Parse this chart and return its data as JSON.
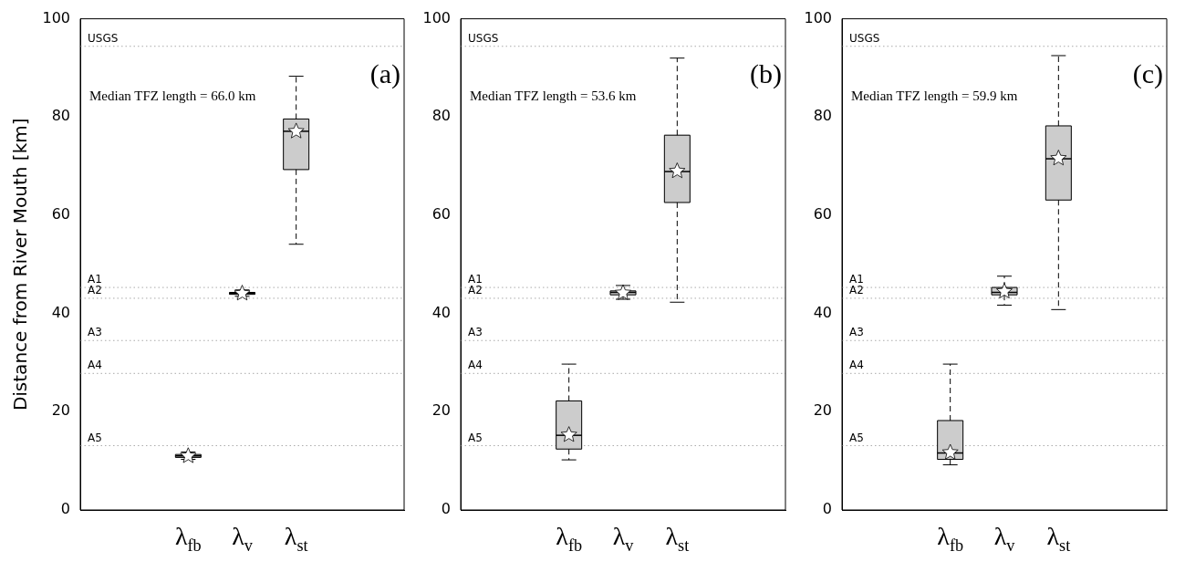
{
  "chart_data": [
    {
      "type": "box",
      "ylabel": "Distance from River Mouth [km]",
      "categories": [
        "λ$_{fb}$",
        "λ$_{v}$",
        "λ$_{st}$"
      ],
      "color": "#cccccc",
      "marker": "star",
      "ylim": [
        0,
        100
      ],
      "yticks": [
        0,
        20,
        40,
        60,
        80,
        100
      ],
      "grid": false,
      "boxes": [
        {
          "low": 10.3,
          "q1": 10.7,
          "median": 11.0,
          "q3": 11.3,
          "high": 11.8,
          "mean": 11.0
        },
        {
          "low": 43.5,
          "q1": 43.9,
          "median": 44.1,
          "q3": 44.3,
          "high": 44.8,
          "mean": 44.1
        },
        {
          "low": 54.1,
          "q1": 69.3,
          "median": 77.1,
          "q3": 79.6,
          "high": 88.3,
          "mean": 77.1
        }
      ],
      "ref_lines": [
        {
          "axis": "y",
          "value": 94.4,
          "label": "USGS",
          "color": "#aaaaaa",
          "line_style": "dotted"
        },
        {
          "axis": "y",
          "value": 45.3,
          "label": "A1",
          "color": "#aaaaaa",
          "line_style": "dotted"
        },
        {
          "axis": "y",
          "value": 43.1,
          "label": "A2",
          "color": "#aaaaaa",
          "line_style": "dotted"
        },
        {
          "axis": "y",
          "value": 34.5,
          "label": "A3",
          "color": "#aaaaaa",
          "line_style": "dotted"
        },
        {
          "axis": "y",
          "value": 27.8,
          "label": "A4",
          "color": "#aaaaaa",
          "line_style": "dotted"
        },
        {
          "axis": "y",
          "value": 13.1,
          "label": "A5",
          "color": "#aaaaaa",
          "line_style": "dotted"
        }
      ],
      "annotations": [
        "Median TFZ length = 66.0 km",
        "(a)"
      ]
    },
    {
      "type": "box",
      "categories": [
        "λ$_{fb}$",
        "λ$_{v}$",
        "λ$_{st}$"
      ],
      "color": "#cccccc",
      "marker": "star",
      "ylim": [
        0,
        100
      ],
      "yticks": [
        0,
        20,
        40,
        60,
        80,
        100
      ],
      "grid": false,
      "boxes": [
        {
          "low": 10.2,
          "q1": 12.4,
          "median": 15.2,
          "q3": 22.2,
          "high": 29.7,
          "mean": 15.3
        },
        {
          "low": 42.9,
          "q1": 43.8,
          "median": 44.3,
          "q3": 44.6,
          "high": 45.7,
          "mean": 44.2
        },
        {
          "low": 42.3,
          "q1": 62.6,
          "median": 68.9,
          "q3": 76.3,
          "high": 92.0,
          "mean": 69.0
        }
      ],
      "ref_lines": [
        {
          "axis": "y",
          "value": 94.4,
          "label": "USGS",
          "color": "#aaaaaa",
          "line_style": "dotted"
        },
        {
          "axis": "y",
          "value": 45.3,
          "label": "A1",
          "color": "#aaaaaa",
          "line_style": "dotted"
        },
        {
          "axis": "y",
          "value": 43.1,
          "label": "A2",
          "color": "#aaaaaa",
          "line_style": "dotted"
        },
        {
          "axis": "y",
          "value": 34.5,
          "label": "A3",
          "color": "#aaaaaa",
          "line_style": "dotted"
        },
        {
          "axis": "y",
          "value": 27.8,
          "label": "A4",
          "color": "#aaaaaa",
          "line_style": "dotted"
        },
        {
          "axis": "y",
          "value": 13.1,
          "label": "A5",
          "color": "#aaaaaa",
          "line_style": "dotted"
        }
      ],
      "annotations": [
        "Median TFZ length = 53.6 km",
        "(b)"
      ]
    },
    {
      "type": "box",
      "categories": [
        "λ$_{fb}$",
        "λ$_{v}$",
        "λ$_{st}$"
      ],
      "color": "#cccccc",
      "marker": "star",
      "ylim": [
        0,
        100
      ],
      "yticks": [
        0,
        20,
        40,
        60,
        80,
        100
      ],
      "grid": false,
      "boxes": [
        {
          "low": 9.2,
          "q1": 10.3,
          "median": 11.6,
          "q3": 18.2,
          "high": 29.7,
          "mean": 11.7
        },
        {
          "low": 41.7,
          "q1": 43.8,
          "median": 44.3,
          "q3": 45.3,
          "high": 47.6,
          "mean": 44.5
        },
        {
          "low": 40.8,
          "q1": 63.1,
          "median": 71.5,
          "q3": 78.2,
          "high": 92.5,
          "mean": 71.6
        }
      ],
      "ref_lines": [
        {
          "axis": "y",
          "value": 94.4,
          "label": "USGS",
          "color": "#aaaaaa",
          "line_style": "dotted"
        },
        {
          "axis": "y",
          "value": 45.3,
          "label": "A1",
          "color": "#aaaaaa",
          "line_style": "dotted"
        },
        {
          "axis": "y",
          "value": 43.1,
          "label": "A2",
          "color": "#aaaaaa",
          "line_style": "dotted"
        },
        {
          "axis": "y",
          "value": 34.5,
          "label": "A3",
          "color": "#aaaaaa",
          "line_style": "dotted"
        },
        {
          "axis": "y",
          "value": 27.8,
          "label": "A4",
          "color": "#aaaaaa",
          "line_style": "dotted"
        },
        {
          "axis": "y",
          "value": 13.1,
          "label": "A5",
          "color": "#aaaaaa",
          "line_style": "dotted"
        }
      ],
      "annotations": [
        "Median TFZ length = 59.9 km",
        "(c)"
      ]
    }
  ]
}
